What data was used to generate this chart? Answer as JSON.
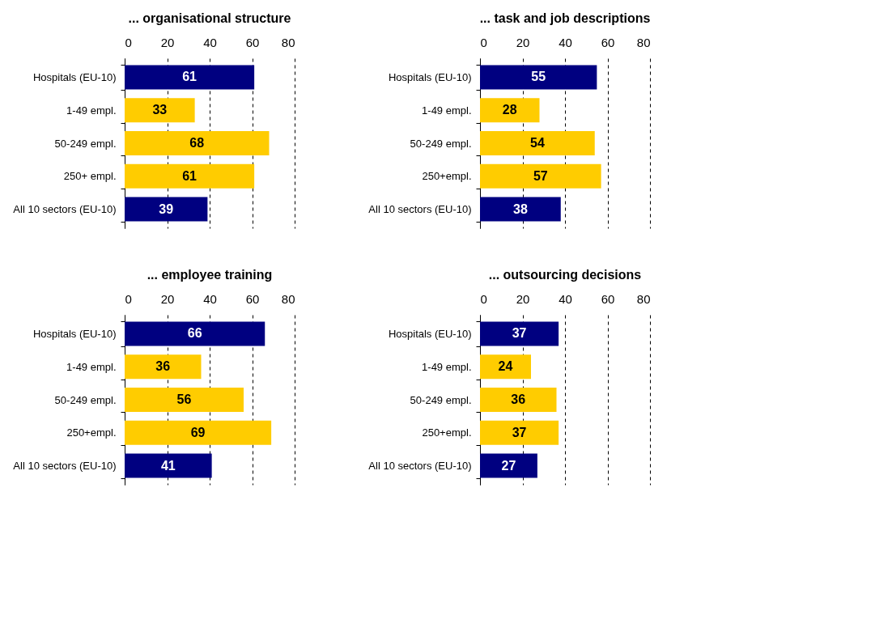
{
  "chart_data": [
    {
      "type": "bar",
      "orientation": "horizontal",
      "title": "... organisational structure",
      "categories": [
        "Hospitals (EU-10)",
        "1-49 empl.",
        "50-249 empl.",
        "250+ empl.",
        "All 10 sectors (EU-10)"
      ],
      "values": [
        61,
        33,
        68,
        61,
        39
      ],
      "colors": [
        "#000080",
        "#ffcc00",
        "#ffcc00",
        "#ffcc00",
        "#000080"
      ],
      "xlim": [
        0,
        80
      ],
      "xticks": [
        0,
        20,
        40,
        60,
        80
      ],
      "grid": "x",
      "data_labels": true
    },
    {
      "type": "bar",
      "orientation": "horizontal",
      "title": "... task and job descriptions",
      "categories": [
        "Hospitals (EU-10)",
        "1-49 empl.",
        "50-249 empl.",
        "250+empl.",
        "All 10 sectors (EU-10)"
      ],
      "values": [
        55,
        28,
        54,
        57,
        38
      ],
      "colors": [
        "#000080",
        "#ffcc00",
        "#ffcc00",
        "#ffcc00",
        "#000080"
      ],
      "xlim": [
        0,
        80
      ],
      "xticks": [
        0,
        20,
        40,
        60,
        80
      ],
      "grid": "x",
      "data_labels": true
    },
    {
      "type": "bar",
      "orientation": "horizontal",
      "title": "... employee training",
      "categories": [
        "Hospitals (EU-10)",
        "1-49 empl.",
        "50-249 empl.",
        "250+empl.",
        "All 10 sectors (EU-10)"
      ],
      "values": [
        66,
        36,
        56,
        69,
        41
      ],
      "colors": [
        "#000080",
        "#ffcc00",
        "#ffcc00",
        "#ffcc00",
        "#000080"
      ],
      "xlim": [
        0,
        80
      ],
      "xticks": [
        0,
        20,
        40,
        60,
        80
      ],
      "grid": "x",
      "data_labels": true
    },
    {
      "type": "bar",
      "orientation": "horizontal",
      "title": "... outsourcing decisions",
      "categories": [
        "Hospitals (EU-10)",
        "1-49 empl.",
        "50-249 empl.",
        "250+empl.",
        "All 10 sectors (EU-10)"
      ],
      "values": [
        37,
        24,
        36,
        37,
        27
      ],
      "colors": [
        "#000080",
        "#ffcc00",
        "#ffcc00",
        "#ffcc00",
        "#000080"
      ],
      "xlim": [
        0,
        80
      ],
      "xticks": [
        0,
        20,
        40,
        60,
        80
      ],
      "grid": "x",
      "data_labels": true
    }
  ]
}
